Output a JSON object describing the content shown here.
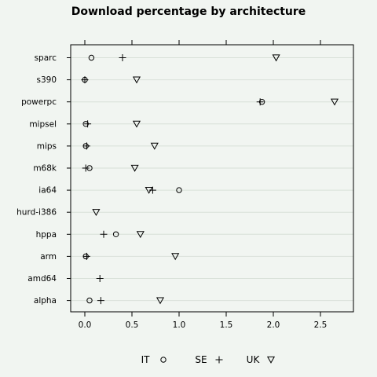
{
  "chart_data": {
    "type": "scatter",
    "title": "Download percentage by architecture",
    "xlabel": "",
    "ylabel": "",
    "xlim": [
      -0.15,
      2.85
    ],
    "xticks": [
      0.0,
      0.5,
      1.0,
      1.5,
      2.0,
      2.5
    ],
    "xtick_labels": [
      "0.0",
      "0.5",
      "1.0",
      "1.5",
      "2.0",
      "2.5"
    ],
    "grid": "horizontal",
    "legend_placement": "bottom",
    "categories": [
      "sparc",
      "s390",
      "powerpc",
      "mipsel",
      "mips",
      "m68k",
      "ia64",
      "hurd-i386",
      "hppa",
      "arm",
      "amd64",
      "alpha"
    ],
    "series": [
      {
        "name": "IT",
        "marker": "circle",
        "values": [
          0.07,
          0.0,
          1.88,
          0.01,
          0.01,
          0.05,
          1.0,
          null,
          0.33,
          0.01,
          null,
          0.05
        ]
      },
      {
        "name": "SE",
        "marker": "plus",
        "values": [
          0.4,
          0.0,
          1.86,
          0.03,
          0.02,
          0.01,
          0.72,
          null,
          0.2,
          0.02,
          0.16,
          0.17
        ]
      },
      {
        "name": "UK",
        "marker": "triangle-down",
        "values": [
          2.03,
          0.55,
          2.65,
          0.55,
          0.74,
          0.53,
          0.68,
          0.12,
          0.59,
          0.96,
          null,
          0.8
        ]
      }
    ]
  },
  "colors": {
    "background": "#f1f5f1",
    "gridline": "#d8e0d8",
    "ink": "#000000"
  }
}
